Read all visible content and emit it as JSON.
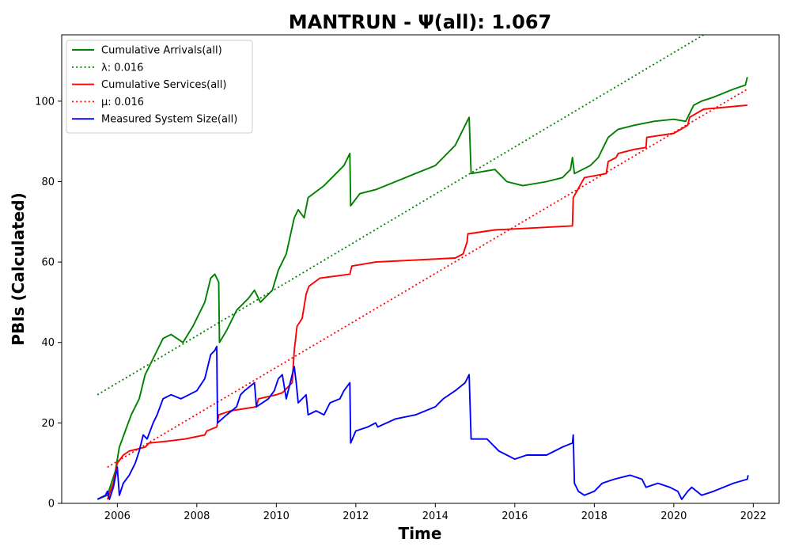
{
  "chart_data": {
    "type": "line",
    "title": "MANTRUN -  Ψ(all): 1.067",
    "xlabel": "Time",
    "ylabel": "PBIs (Calculated)",
    "xlim": [
      2004.6,
      2022.65
    ],
    "ylim": [
      0,
      116.5
    ],
    "xticks": [
      2006,
      2008,
      2010,
      2012,
      2014,
      2016,
      2018,
      2020,
      2022
    ],
    "yticks": [
      0,
      20,
      40,
      60,
      80,
      100
    ],
    "grid": false,
    "legend_position": "top-left",
    "series": [
      {
        "name": "Cumulative Arrivals(all)",
        "color": "#008000",
        "style": "solid",
        "points": [
          [
            2005.5,
            1
          ],
          [
            2005.75,
            2
          ],
          [
            2005.95,
            8
          ],
          [
            2006.05,
            14
          ],
          [
            2006.2,
            18
          ],
          [
            2006.35,
            22
          ],
          [
            2006.55,
            26
          ],
          [
            2006.7,
            32
          ],
          [
            2006.95,
            37
          ],
          [
            2007.15,
            41
          ],
          [
            2007.35,
            42
          ],
          [
            2007.65,
            40
          ],
          [
            2007.9,
            44
          ],
          [
            2008.2,
            50
          ],
          [
            2008.35,
            56
          ],
          [
            2008.45,
            57
          ],
          [
            2008.55,
            55
          ],
          [
            2008.57,
            40
          ],
          [
            2008.75,
            43
          ],
          [
            2009.0,
            48
          ],
          [
            2009.3,
            51
          ],
          [
            2009.45,
            53
          ],
          [
            2009.6,
            50
          ],
          [
            2009.9,
            53
          ],
          [
            2010.05,
            58
          ],
          [
            2010.25,
            62
          ],
          [
            2010.45,
            71
          ],
          [
            2010.55,
            73
          ],
          [
            2010.7,
            71
          ],
          [
            2010.8,
            76
          ],
          [
            2011.2,
            79
          ],
          [
            2011.4,
            81
          ],
          [
            2011.7,
            84
          ],
          [
            2011.85,
            87
          ],
          [
            2011.87,
            74
          ],
          [
            2012.1,
            77
          ],
          [
            2012.5,
            78
          ],
          [
            2013.0,
            80
          ],
          [
            2013.5,
            82
          ],
          [
            2014.0,
            84
          ],
          [
            2014.2,
            86
          ],
          [
            2014.5,
            89
          ],
          [
            2014.75,
            94
          ],
          [
            2014.85,
            96
          ],
          [
            2014.9,
            82
          ],
          [
            2015.5,
            83
          ],
          [
            2015.8,
            80
          ],
          [
            2016.2,
            79
          ],
          [
            2016.8,
            80
          ],
          [
            2017.2,
            81
          ],
          [
            2017.4,
            83
          ],
          [
            2017.45,
            86
          ],
          [
            2017.5,
            82
          ],
          [
            2017.9,
            84
          ],
          [
            2018.1,
            86
          ],
          [
            2018.35,
            91
          ],
          [
            2018.6,
            93
          ],
          [
            2019.0,
            94
          ],
          [
            2019.5,
            95
          ],
          [
            2020.0,
            95.5
          ],
          [
            2020.3,
            95
          ],
          [
            2020.5,
            99
          ],
          [
            2020.7,
            100
          ],
          [
            2021.0,
            101
          ],
          [
            2021.5,
            103
          ],
          [
            2021.8,
            104
          ],
          [
            2021.85,
            106
          ]
        ]
      },
      {
        "name": "λ: 0.016",
        "color": "#008000",
        "style": "dotted",
        "points": [
          [
            2005.5,
            27
          ],
          [
            2020.75,
            116.5
          ]
        ]
      },
      {
        "name": "Cumulative Services(all)",
        "color": "#ff0000",
        "style": "solid",
        "points": [
          [
            2005.75,
            1
          ],
          [
            2005.9,
            5
          ],
          [
            2006.0,
            10
          ],
          [
            2006.15,
            12
          ],
          [
            2006.3,
            13
          ],
          [
            2006.7,
            14
          ],
          [
            2006.8,
            15
          ],
          [
            2007.3,
            15.5
          ],
          [
            2007.7,
            16
          ],
          [
            2008.2,
            17
          ],
          [
            2008.25,
            18
          ],
          [
            2008.5,
            19
          ],
          [
            2008.55,
            22
          ],
          [
            2008.85,
            23
          ],
          [
            2009.5,
            24
          ],
          [
            2009.55,
            26
          ],
          [
            2010.0,
            27
          ],
          [
            2010.15,
            27.5
          ],
          [
            2010.4,
            30
          ],
          [
            2010.45,
            38
          ],
          [
            2010.52,
            44
          ],
          [
            2010.65,
            46
          ],
          [
            2010.75,
            52
          ],
          [
            2010.82,
            54
          ],
          [
            2011.1,
            56
          ],
          [
            2011.85,
            57
          ],
          [
            2011.9,
            59
          ],
          [
            2012.5,
            60
          ],
          [
            2014.5,
            61
          ],
          [
            2014.7,
            62
          ],
          [
            2014.8,
            65
          ],
          [
            2014.82,
            67
          ],
          [
            2015.5,
            68
          ],
          [
            2017.45,
            69
          ],
          [
            2017.47,
            76
          ],
          [
            2017.75,
            81
          ],
          [
            2018.3,
            82
          ],
          [
            2018.35,
            85
          ],
          [
            2018.55,
            86
          ],
          [
            2018.6,
            87
          ],
          [
            2019.0,
            88
          ],
          [
            2019.3,
            88.5
          ],
          [
            2019.32,
            91
          ],
          [
            2020.0,
            92
          ],
          [
            2020.35,
            94
          ],
          [
            2020.4,
            96
          ],
          [
            2020.75,
            98
          ],
          [
            2021.85,
            99
          ]
        ]
      },
      {
        "name": "μ: 0.016",
        "color": "#ff0000",
        "style": "dotted",
        "points": [
          [
            2005.75,
            9
          ],
          [
            2021.85,
            103
          ]
        ]
      },
      {
        "name": "Measured System Size(all)",
        "color": "#0000ff",
        "style": "solid",
        "points": [
          [
            2005.5,
            1
          ],
          [
            2005.7,
            2
          ],
          [
            2005.75,
            3
          ],
          [
            2005.8,
            1
          ],
          [
            2005.9,
            4
          ],
          [
            2006.0,
            9
          ],
          [
            2006.05,
            2
          ],
          [
            2006.15,
            5
          ],
          [
            2006.3,
            7
          ],
          [
            2006.45,
            10
          ],
          [
            2006.55,
            13
          ],
          [
            2006.65,
            17
          ],
          [
            2006.75,
            16
          ],
          [
            2006.9,
            20
          ],
          [
            2007.0,
            22
          ],
          [
            2007.15,
            26
          ],
          [
            2007.35,
            27
          ],
          [
            2007.6,
            26
          ],
          [
            2007.8,
            27
          ],
          [
            2008.0,
            28
          ],
          [
            2008.2,
            31
          ],
          [
            2008.35,
            37
          ],
          [
            2008.45,
            38
          ],
          [
            2008.5,
            39
          ],
          [
            2008.52,
            20
          ],
          [
            2008.75,
            22
          ],
          [
            2009.0,
            24
          ],
          [
            2009.1,
            27
          ],
          [
            2009.2,
            28
          ],
          [
            2009.45,
            30
          ],
          [
            2009.5,
            24
          ],
          [
            2009.8,
            26
          ],
          [
            2009.95,
            28
          ],
          [
            2010.05,
            31
          ],
          [
            2010.15,
            32
          ],
          [
            2010.25,
            26
          ],
          [
            2010.35,
            30
          ],
          [
            2010.45,
            34
          ],
          [
            2010.5,
            30
          ],
          [
            2010.55,
            25
          ],
          [
            2010.75,
            27
          ],
          [
            2010.8,
            22
          ],
          [
            2011.0,
            23
          ],
          [
            2011.2,
            22
          ],
          [
            2011.35,
            25
          ],
          [
            2011.6,
            26
          ],
          [
            2011.7,
            28
          ],
          [
            2011.85,
            30
          ],
          [
            2011.87,
            15
          ],
          [
            2012.0,
            18
          ],
          [
            2012.3,
            19
          ],
          [
            2012.5,
            20
          ],
          [
            2012.55,
            19
          ],
          [
            2013.0,
            21
          ],
          [
            2013.5,
            22
          ],
          [
            2014.0,
            24
          ],
          [
            2014.2,
            26
          ],
          [
            2014.5,
            28
          ],
          [
            2014.75,
            30
          ],
          [
            2014.85,
            32
          ],
          [
            2014.9,
            16
          ],
          [
            2015.3,
            16
          ],
          [
            2015.6,
            13
          ],
          [
            2016.0,
            11
          ],
          [
            2016.3,
            12
          ],
          [
            2016.8,
            12
          ],
          [
            2017.2,
            14
          ],
          [
            2017.45,
            15
          ],
          [
            2017.47,
            17
          ],
          [
            2017.5,
            5
          ],
          [
            2017.6,
            3
          ],
          [
            2017.75,
            2
          ],
          [
            2018.0,
            3
          ],
          [
            2018.2,
            5
          ],
          [
            2018.5,
            6
          ],
          [
            2018.9,
            7
          ],
          [
            2019.2,
            6
          ],
          [
            2019.3,
            4
          ],
          [
            2019.6,
            5
          ],
          [
            2019.9,
            4
          ],
          [
            2020.1,
            3
          ],
          [
            2020.2,
            1
          ],
          [
            2020.35,
            3
          ],
          [
            2020.45,
            4
          ],
          [
            2020.7,
            2
          ],
          [
            2021.0,
            3
          ],
          [
            2021.5,
            5
          ],
          [
            2021.85,
            6
          ],
          [
            2021.87,
            7
          ]
        ]
      }
    ]
  }
}
